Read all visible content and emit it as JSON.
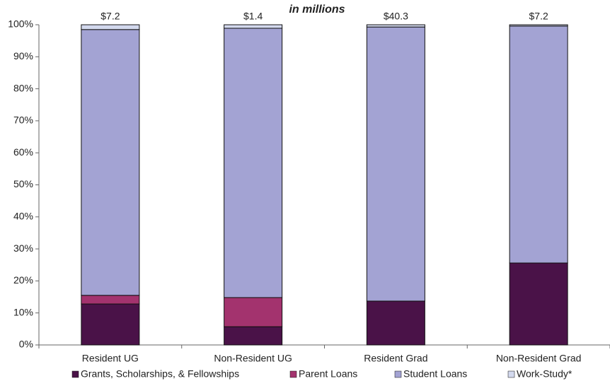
{
  "chart_data": {
    "type": "stacked_bar",
    "subtitle": "in millions",
    "categories": [
      "Resident UG",
      "Non-Resident UG",
      "Resident Grad",
      "Non-Resident Grad"
    ],
    "annotations": [
      "$7.2",
      "$1.4",
      "$40.3",
      "$7.2"
    ],
    "series": [
      {
        "name": "Grants, Scholarships, & Fellowships",
        "color": "#4a1248",
        "values": [
          12.8,
          5.7,
          13.7,
          25.6
        ]
      },
      {
        "name": "Parent Loans",
        "color": "#a3336e",
        "values": [
          2.7,
          9.1,
          0,
          0
        ]
      },
      {
        "name": "Student Loans",
        "color": "#a3a3d3",
        "values": [
          83,
          84.1,
          85.6,
          74
        ]
      },
      {
        "name": "Work-Study*",
        "color": "#d3d9ee",
        "values": [
          1.5,
          1.1,
          0.7,
          0.4
        ]
      }
    ],
    "ylim": [
      0,
      100
    ],
    "yticks": [
      {
        "value": 0,
        "label": "0%"
      },
      {
        "value": 10,
        "label": "10%"
      },
      {
        "value": 20,
        "label": "20%"
      },
      {
        "value": 30,
        "label": "30%"
      },
      {
        "value": 40,
        "label": "40%"
      },
      {
        "value": 50,
        "label": "50%"
      },
      {
        "value": 60,
        "label": "60%"
      },
      {
        "value": 70,
        "label": "70%"
      },
      {
        "value": 80,
        "label": "80%"
      },
      {
        "value": 90,
        "label": "90%"
      },
      {
        "value": 100,
        "label": "100%"
      }
    ]
  }
}
